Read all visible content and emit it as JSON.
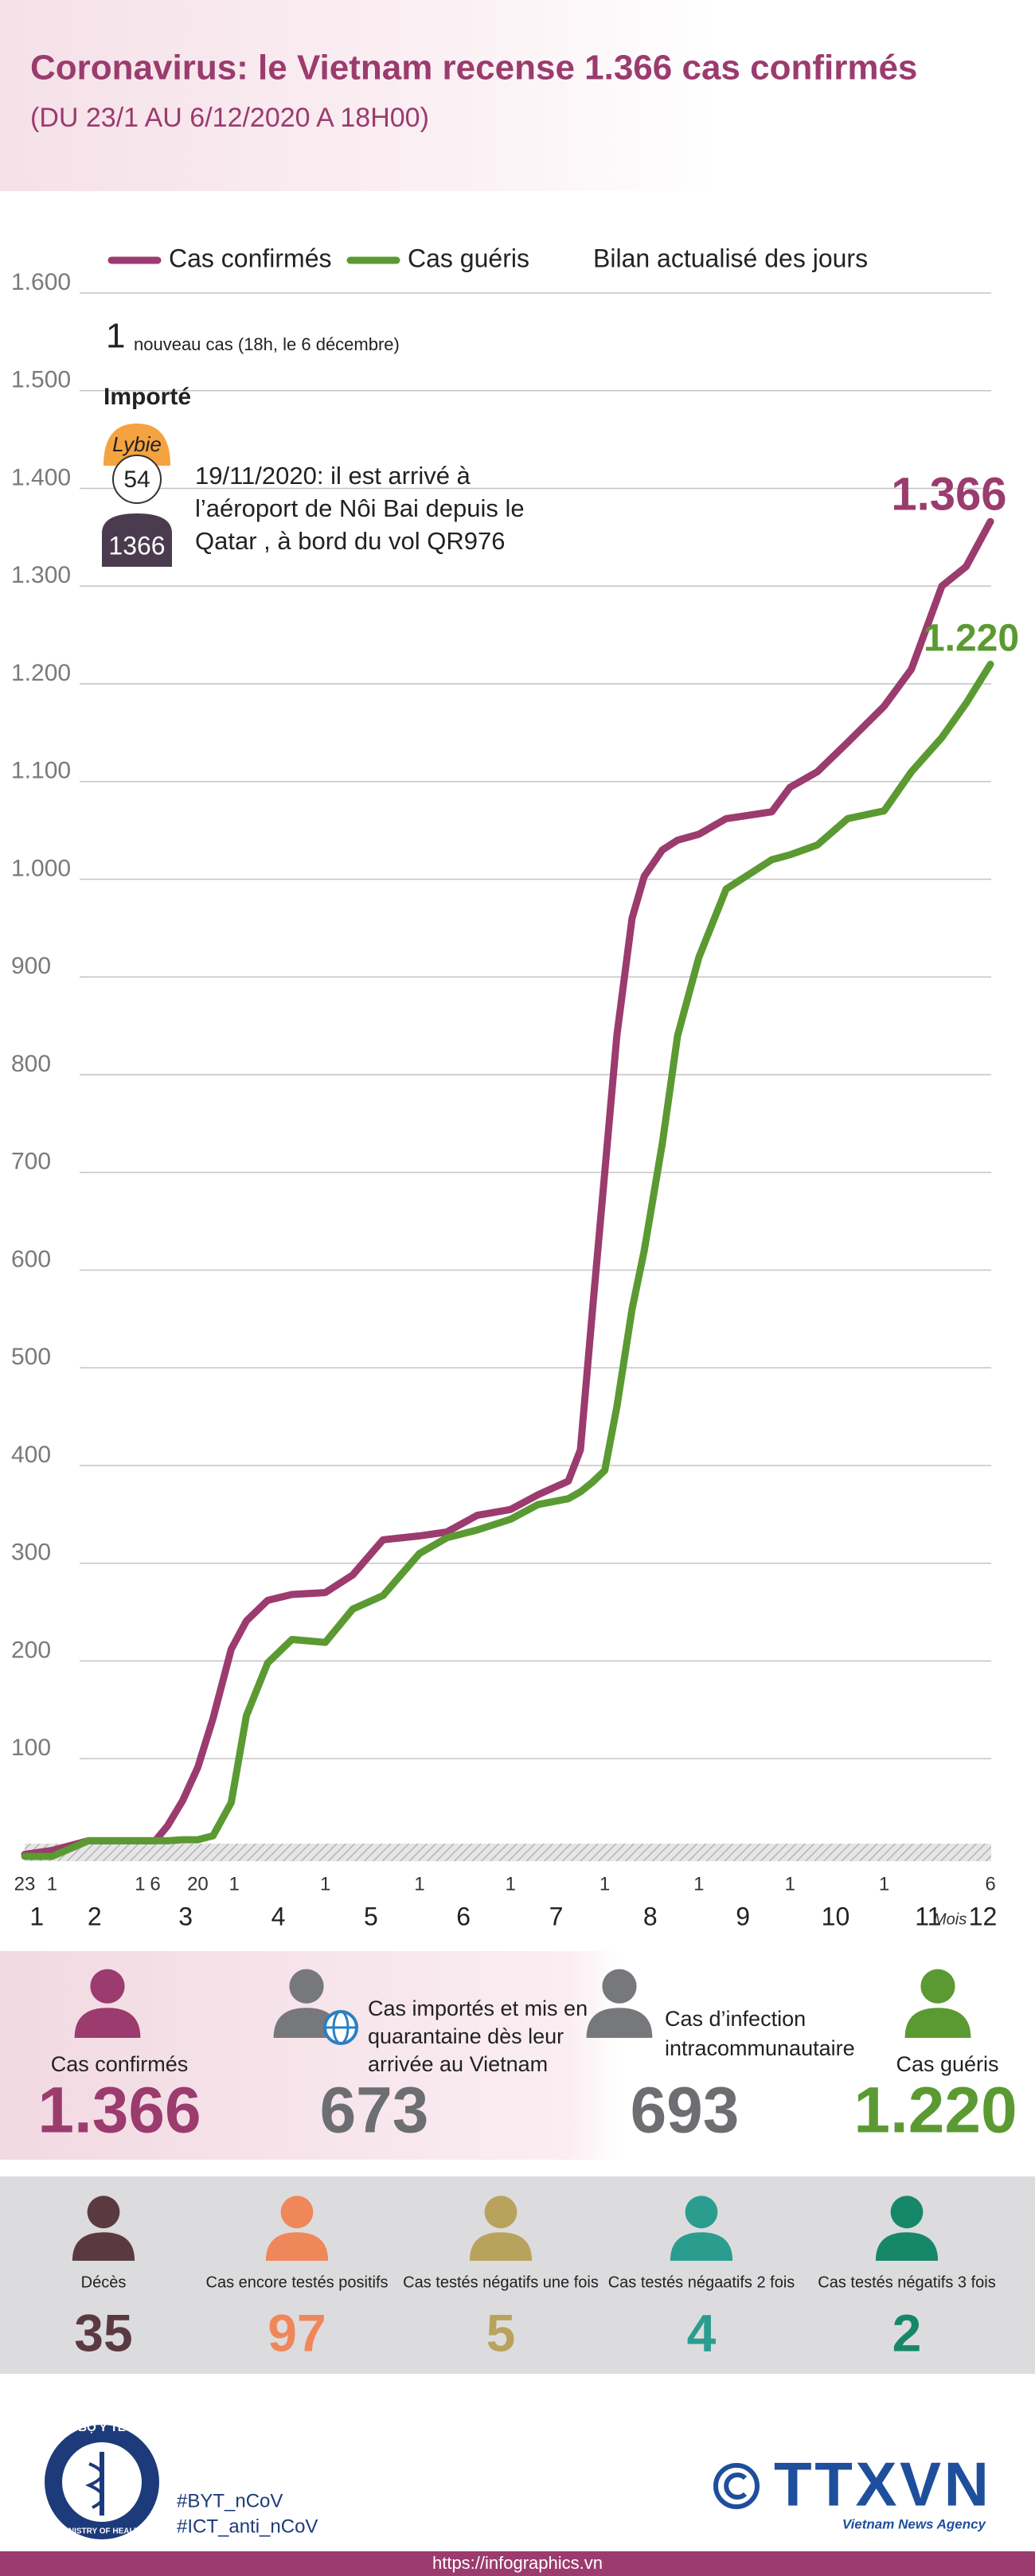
{
  "header": {
    "title": "Coronavirus: le Vietnam recense 1.366 cas confirmés",
    "subtitle": "(DU 23/1 AU 6/12/2020 A 18H00)"
  },
  "chart_data": {
    "type": "line",
    "legend_note": "Bilan actualisé des jours",
    "x": [
      "23/1",
      "1/2",
      "13/2",
      "1/3",
      "6/3",
      "10/3",
      "15/3",
      "20/3",
      "25/3",
      "31/3",
      "5/4",
      "12/4",
      "20/4",
      "1/5",
      "10/5",
      "20/5",
      "1/6",
      "10/6",
      "20/6",
      "1/7",
      "10/7",
      "20/7",
      "24/7",
      "28/7",
      "1/8",
      "5/8",
      "10/8",
      "14/8",
      "20/8",
      "25/8",
      "1/9",
      "10/9",
      "25/9",
      "1/10",
      "10/10",
      "20/10",
      "1/11",
      "10/11",
      "20/11",
      "28/11",
      "6/12"
    ],
    "xlim": [
      "23/1",
      "6/12"
    ],
    "xticks": [
      {
        "value": "23/1",
        "label": "23"
      },
      {
        "value": "1/2",
        "label": "1"
      },
      {
        "value": "1/3",
        "label": "1"
      },
      {
        "value": "6/3",
        "label": "6"
      },
      {
        "value": "20/3",
        "label": "20"
      },
      {
        "value": "1/4",
        "label": "1"
      },
      {
        "value": "1/5",
        "label": "1"
      },
      {
        "value": "1/6",
        "label": "1"
      },
      {
        "value": "1/7",
        "label": "1"
      },
      {
        "value": "1/8",
        "label": "1"
      },
      {
        "value": "1/9",
        "label": "1"
      },
      {
        "value": "1/10",
        "label": "1"
      },
      {
        "value": "1/11",
        "label": "1"
      },
      {
        "value": "6/12",
        "label": "6"
      }
    ],
    "month_ticks": [
      1,
      2,
      3,
      4,
      5,
      6,
      7,
      8,
      9,
      10,
      11,
      12
    ],
    "month_axis_label": "Mois",
    "ylim": [
      0,
      1600
    ],
    "yticks": [
      100,
      200,
      300,
      400,
      500,
      600,
      700,
      800,
      900,
      {
        "value": 1000,
        "label": "1.000"
      },
      {
        "value": 1100,
        "label": "1.100"
      },
      {
        "value": 1200,
        "label": "1.200"
      },
      {
        "value": 1300,
        "label": "1.300"
      },
      {
        "value": 1400,
        "label": "1.400"
      },
      {
        "value": 1500,
        "label": "1.500"
      },
      {
        "value": 1600,
        "label": "1.600"
      }
    ],
    "grid": true,
    "series": [
      {
        "name": "Cas confirmés",
        "color": "#9b3b6e",
        "values": [
          2,
          6,
          16,
          16,
          16,
          31,
          57,
          91,
          141,
          212,
          241,
          262,
          268,
          270,
          288,
          324,
          328,
          332,
          349,
          355,
          370,
          384,
          416,
          560,
          700,
          840,
          960,
          1003,
          1030,
          1040,
          1046,
          1062,
          1069,
          1094,
          1110,
          1140,
          1177,
          1215,
          1300,
          1320,
          1366
        ],
        "value_labels": [
          null,
          null,
          null,
          null,
          null,
          null,
          null,
          null,
          null,
          null,
          null,
          null,
          null,
          null,
          null,
          null,
          null,
          null,
          null,
          null,
          null,
          null,
          null,
          null,
          null,
          null,
          null,
          null,
          null,
          null,
          null,
          null,
          null,
          null,
          null,
          null,
          null,
          null,
          null,
          null,
          "1.366"
        ]
      },
      {
        "name": "Cas guéris",
        "color": "#5b9a32",
        "values": [
          0,
          0,
          16,
          16,
          16,
          16,
          17,
          17,
          21,
          55,
          144,
          198,
          222,
          219,
          253,
          267,
          310,
          326,
          334,
          345,
          360,
          366,
          373,
          383,
          395,
          460,
          560,
          620,
          730,
          840,
          920,
          990,
          1020,
          1025,
          1035,
          1062,
          1070,
          1110,
          1145,
          1180,
          1220
        ],
        "value_labels": [
          null,
          null,
          null,
          null,
          null,
          null,
          null,
          null,
          null,
          null,
          null,
          null,
          null,
          null,
          null,
          null,
          null,
          null,
          null,
          null,
          null,
          null,
          null,
          null,
          null,
          null,
          null,
          null,
          null,
          null,
          null,
          null,
          null,
          null,
          null,
          null,
          null,
          null,
          null,
          null,
          "1.220"
        ]
      }
    ],
    "annotation": {
      "count": 1,
      "note": "nouveau cas (18h,  le 6 décembre)",
      "category": "Importé",
      "origin": "Lybie",
      "age": 54,
      "case_id": 1366,
      "lines": [
        "19/11/2020: il est arrivé à",
        "l’aéroport de Nôi Bai depuis le",
        "Qatar , à bord du vol QR976"
      ]
    }
  },
  "summary": [
    {
      "label": [
        "Cas confirmés"
      ],
      "value": "1.366",
      "color": "#9b3b6e"
    },
    {
      "label": [
        "Cas importés et mis en",
        "quarantaine dès leur",
        "arrivée au Vietnam"
      ],
      "value": 673,
      "color": "#6d6e71"
    },
    {
      "label": [
        "Cas d’infection",
        "intracommunautaire"
      ],
      "value": 693,
      "color": "#6d6e71"
    },
    {
      "label": [
        "Cas guéris"
      ],
      "value": "1.220",
      "color": "#5b9a32"
    }
  ],
  "status": [
    {
      "label": "Décès",
      "value": 35,
      "color": "#5a3a40"
    },
    {
      "label": "Cas encore testés positifs",
      "value": 97,
      "color": "#f0875a"
    },
    {
      "label": "Cas testés négatifs une fois",
      "value": 5,
      "color": "#b9a35c"
    },
    {
      "label": "Cas testés négaatifs 2 fois",
      "value": 4,
      "color": "#2a9d8f"
    },
    {
      "label": "Cas testés négatifs 3 fois",
      "value": 2,
      "color": "#17876a"
    }
  ],
  "footer": {
    "logo_top": "BỘ Y TẾ",
    "logo_bottom": "MINISTRY OF HEALTH",
    "hashtags": [
      "#BYT_nCoV",
      "#ICT_anti_nCoV"
    ],
    "agency": "TTXVN",
    "agency_sub": "Vietnam News Agency",
    "url": "https://infographics.vn"
  }
}
